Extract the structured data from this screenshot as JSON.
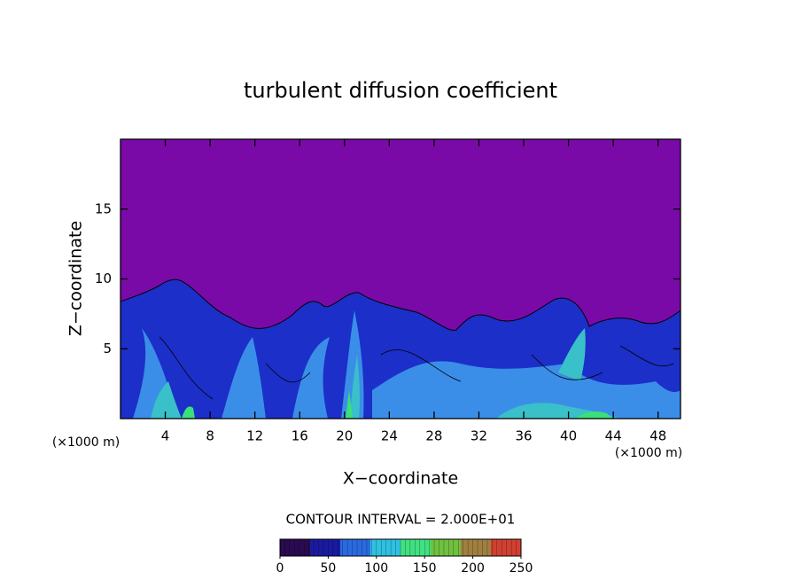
{
  "chart_data": {
    "type": "contour",
    "title": "turbulent diffusion coefficient",
    "xlabel": "X−coordinate",
    "ylabel": "Z−coordinate",
    "x_unit": "(×1000 m)",
    "xlim": [
      0,
      50
    ],
    "xticks": [
      4,
      8,
      12,
      16,
      20,
      24,
      28,
      32,
      36,
      40,
      44,
      48
    ],
    "ylim": [
      0,
      20
    ],
    "yticks": [
      5,
      10,
      15
    ],
    "contour_interval_label": "CONTOUR INTERVAL = 2.000E+01",
    "colorbar": {
      "lim": [
        0,
        250
      ],
      "ticks": [
        0,
        50,
        100,
        150,
        200,
        250
      ],
      "colors": [
        "#2a0a50",
        "#1a1aa0",
        "#2a6ae0",
        "#30c0e0",
        "#40e080",
        "#70c040",
        "#a08040",
        "#d04030"
      ]
    }
  }
}
